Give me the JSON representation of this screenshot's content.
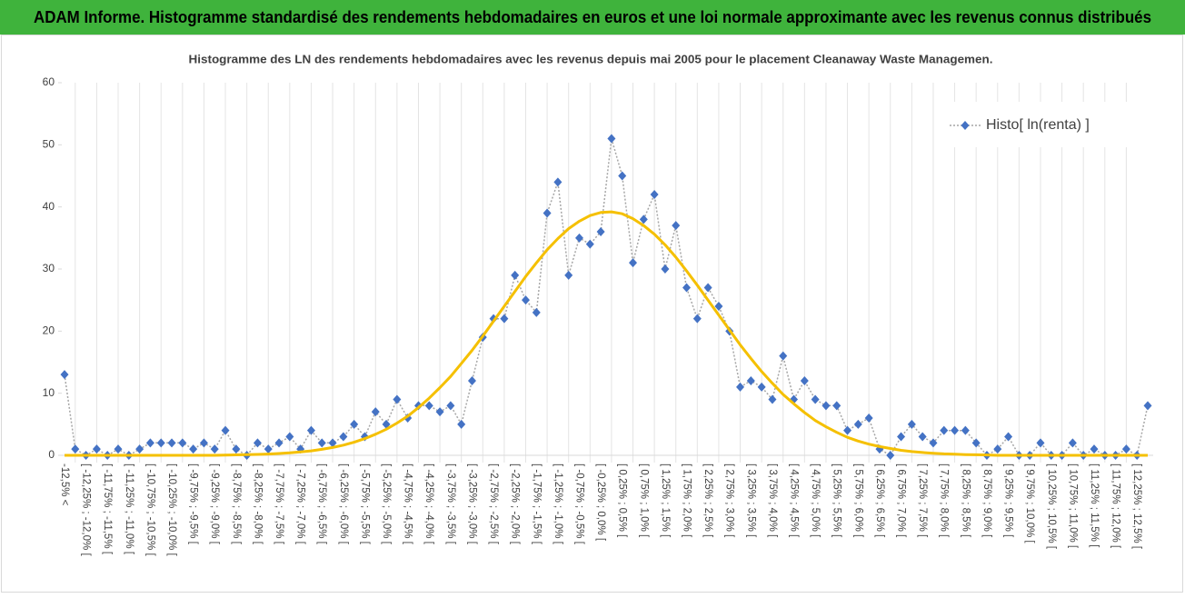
{
  "header": {
    "title": "ADAM Informe. Histogramme standardisé des rendements hebdomadaires en euros et une loi normale approximante avec les revenus connus distribués"
  },
  "chart_data": {
    "type": "line",
    "title": "Histogramme  des LN des rendements hebdomadaires avec les revenus depuis mai 2005 pour le placement Cleanaway Waste Managemen.",
    "categories": [
      "-12,5% <",
      null,
      "[ -12,25% ; -12,0% [",
      null,
      "[ -11,75% ; -11,5% [",
      null,
      "[ -11,25% ; -11,0% [",
      null,
      "[ -10,75% ; -10,5% [",
      null,
      "[ -10,25% ; -10,0% [",
      null,
      "[ -9,75% ; -9,5% [",
      null,
      "[ -9,25% ; -9,0% [",
      null,
      "[ -8,75% ; -8,5% [",
      null,
      "[ -8,25% ; -8,0% [",
      null,
      "[ -7,75% ; -7,5% [",
      null,
      "[ -7,25% ; -7,0% [",
      null,
      "[ -6,75% ; -6,5% [",
      null,
      "[ -6,25% ; -6,0% [",
      null,
      "[ -5,75% ; -5,5% [",
      null,
      "[ -5,25% ; -5,0% [",
      null,
      "[ -4,75% ; -4,5% [",
      null,
      "[ -4,25% ; -4,0% [",
      null,
      "[ -3,75% ; -3,5% [",
      null,
      "[ -3,25% ; -3,0% [",
      null,
      "[ -2,75% ; -2,5% [",
      null,
      "[ -2,25% ; -2,0% [",
      null,
      "[ -1,75% ; -1,5% [",
      null,
      "[ -1,25% ; -1,0% [",
      null,
      "[ -0,75% ; -0,5% [",
      null,
      "[ -0,25% ; 0,0% [",
      null,
      "[ 0,25% ; 0,5% [",
      null,
      "[ 0,75% ; 1,0% [",
      null,
      "[ 1,25% ; 1,5% [",
      null,
      "[ 1,75% ; 2,0% [",
      null,
      "[ 2,25% ; 2,5% [",
      null,
      "[ 2,75% ; 3,0% [",
      null,
      "[ 3,25% ; 3,5% [",
      null,
      "[ 3,75% ; 4,0% [",
      null,
      "[ 4,25% ; 4,5% [",
      null,
      "[ 4,75% ; 5,0% [",
      null,
      "[ 5,25% ; 5,5% [",
      null,
      "[ 5,75% ; 6,0% [",
      null,
      "[ 6,25% ; 6,5% [",
      null,
      "[ 6,75% ; 7,0% [",
      null,
      "[ 7,25% ; 7,5% [",
      null,
      "[ 7,75% ; 8,0% [",
      null,
      "[ 8,25% ; 8,5% [",
      null,
      "[ 8,75% ; 9,0% [",
      null,
      "[ 9,25% ; 9,5% [",
      null,
      "[ 9,75% ; 10,0% [",
      null,
      "[ 10,25% ; 10,5% [",
      null,
      "[ 10,75% ; 11,0% [",
      null,
      "[ 11,25% ; 11,5% [",
      null,
      "[ 11,75% ; 12,0% [",
      null,
      "[ 12,25% ; 12,5% [",
      null
    ],
    "series": [
      {
        "name": "Histo[ ln(renta) ]",
        "color": "#4472c4",
        "style": "dotted-markers",
        "values": [
          13,
          1,
          0,
          1,
          0,
          1,
          0,
          1,
          2,
          2,
          2,
          2,
          1,
          2,
          1,
          4,
          1,
          0,
          2,
          1,
          2,
          3,
          1,
          4,
          2,
          2,
          3,
          5,
          3,
          7,
          5,
          9,
          6,
          8,
          8,
          7,
          8,
          5,
          12,
          19,
          22,
          22,
          29,
          25,
          23,
          39,
          44,
          29,
          35,
          34,
          36,
          51,
          45,
          31,
          38,
          42,
          30,
          37,
          27,
          22,
          27,
          24,
          20,
          11,
          12,
          11,
          9,
          16,
          9,
          12,
          9,
          8,
          8,
          4,
          5,
          6,
          1,
          0,
          3,
          5,
          3,
          2,
          4,
          4,
          4,
          2,
          0,
          1,
          3,
          0,
          0,
          2,
          0,
          0,
          2,
          0,
          1,
          0,
          0,
          1,
          0,
          8
        ]
      },
      {
        "color": "#f5c000",
        "style": "solid",
        "values": [
          0,
          0,
          0,
          0,
          0,
          0,
          0,
          0,
          0,
          0,
          0,
          0,
          0,
          0,
          0,
          0.05,
          0.07,
          0.11,
          0.15,
          0.21,
          0.29,
          0.4,
          0.54,
          0.72,
          0.96,
          1.26,
          1.64,
          2.1,
          2.7,
          3.4,
          4.2,
          5.2,
          6.3,
          7.7,
          9.2,
          10.9,
          12.7,
          14.8,
          16.9,
          19.2,
          21.6,
          24.0,
          26.4,
          28.8,
          31.0,
          33.1,
          34.9,
          36.5,
          37.7,
          38.6,
          39.1,
          39.2,
          38.9,
          38.1,
          37.0,
          35.6,
          33.9,
          31.9,
          29.7,
          27.4,
          25.0,
          22.6,
          20.2,
          17.8,
          15.6,
          13.5,
          11.6,
          9.8,
          8.3,
          6.9,
          5.6,
          4.6,
          3.7,
          2.9,
          2.3,
          1.8,
          1.4,
          1.1,
          0.8,
          0.6,
          0.45,
          0.33,
          0.24,
          0.17,
          0.12,
          0.09,
          0.06,
          0,
          0,
          0,
          0,
          0,
          0,
          0,
          0,
          0,
          0,
          0,
          0,
          0,
          0,
          0
        ]
      }
    ],
    "ylim": [
      0,
      60
    ],
    "yticks": [
      0,
      10,
      20,
      30,
      40,
      50,
      60
    ],
    "grid": "x",
    "legend": "top-right"
  }
}
